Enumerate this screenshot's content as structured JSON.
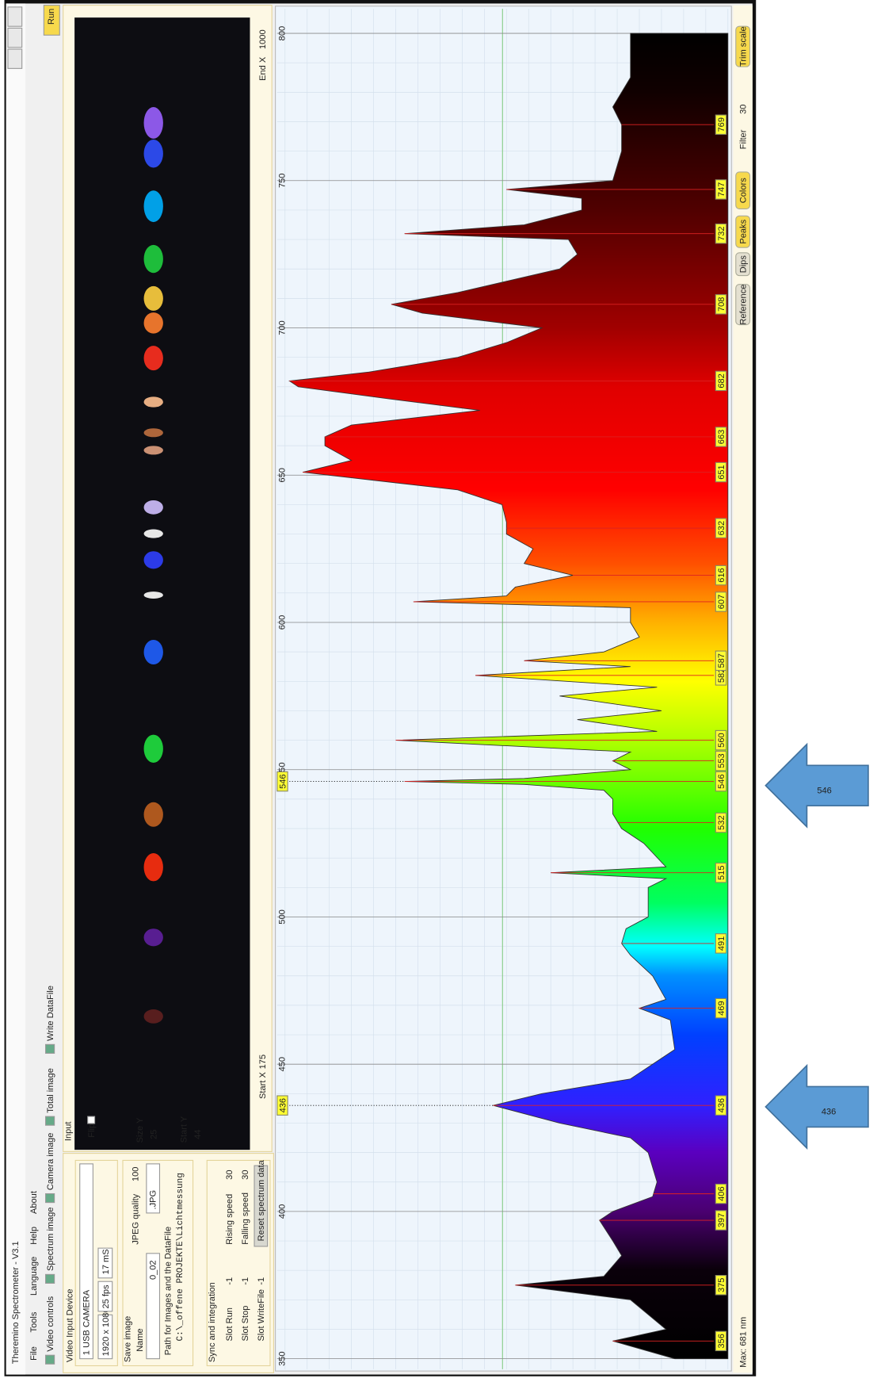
{
  "window": {
    "title": "Theremino Spectrometer - V3.1",
    "menu": [
      "File",
      "Tools",
      "Language",
      "Help",
      "About"
    ],
    "toolbar": [
      "Video controls",
      "Spectrum image",
      "Camera image",
      "Total image",
      "Write DataFile"
    ],
    "run": "Run"
  },
  "video_input": {
    "title": "Video Input Device",
    "device": "1 USB CAMERA",
    "resolution": "1920 x 1080",
    "fps": "25 fps",
    "exposure": "17 mS"
  },
  "save_image": {
    "title": "Save image",
    "name_label": "Name",
    "name": "0_02",
    "jpeg_label": "JPEG quality",
    "jpeg_quality": "100",
    "format": ".JPG",
    "path_label": "Path for Images and the DataFile",
    "path": "C:\\_offene PROJEKTE\\Lichtmessung"
  },
  "sync": {
    "title": "Sync and integration",
    "slots": [
      {
        "label": "Slot Run",
        "value": "-1"
      },
      {
        "label": "Slot Stop",
        "value": "-1"
      },
      {
        "label": "Slot WriteFile",
        "value": "-1"
      }
    ],
    "speeds": [
      {
        "label": "Rising speed",
        "value": "30"
      },
      {
        "label": "Falling speed",
        "value": "30"
      }
    ],
    "reset": "Reset spectrum data"
  },
  "input": {
    "title": "Input",
    "flip": "Flip",
    "size_y_label": "Size Y",
    "size_y": "25",
    "start_y_label": "Start Y",
    "start_y": "44",
    "start_x_label": "Start X",
    "start_x": "175",
    "end_x_label": "End X",
    "end_x": "1000"
  },
  "spectrum": {
    "type": "area",
    "x": [
      350,
      356,
      360,
      370,
      375,
      378,
      385,
      390,
      397,
      400,
      405,
      410,
      420,
      425,
      430,
      436,
      440,
      445,
      455,
      465,
      469,
      472,
      480,
      487,
      491,
      496,
      500,
      510,
      513,
      515,
      517,
      525,
      530,
      535,
      540,
      543,
      545,
      546,
      547,
      550,
      553,
      556,
      560,
      563,
      567,
      570,
      575,
      578,
      582,
      585,
      587,
      590,
      595,
      600,
      605,
      607,
      609,
      612,
      616,
      620,
      625,
      630,
      634,
      640,
      645,
      651,
      655,
      660,
      663,
      667,
      672,
      676,
      680,
      682,
      685,
      690,
      695,
      700,
      705,
      708,
      712,
      720,
      725,
      730,
      732,
      735,
      740,
      744,
      747,
      750,
      760,
      769,
      775,
      785,
      790,
      800
    ],
    "values": [
      12,
      26,
      14,
      22,
      48,
      28,
      24,
      26,
      29,
      26,
      17,
      16,
      18,
      22,
      38,
      53,
      42,
      22,
      12,
      13,
      20,
      14,
      17,
      22,
      24,
      23,
      18,
      18,
      14,
      40,
      14,
      19,
      24,
      26,
      26,
      28,
      46,
      73,
      46,
      22,
      26,
      22,
      75,
      16,
      34,
      15,
      38,
      16,
      57,
      22,
      46,
      28,
      20,
      22,
      22,
      71,
      50,
      48,
      35,
      46,
      44,
      50,
      50,
      51,
      61,
      96,
      85,
      91,
      91,
      85,
      56,
      77,
      97,
      99,
      81,
      61,
      50,
      42,
      69,
      76,
      61,
      38,
      34,
      36,
      73,
      46,
      33,
      33,
      50,
      26,
      24,
      24,
      26,
      22,
      22,
      22
    ],
    "xlim": [
      350,
      800
    ],
    "xticks": [
      350,
      400,
      450,
      500,
      550,
      600,
      650,
      700,
      750,
      800
    ],
    "ylim": [
      0,
      100
    ],
    "grid": true,
    "peaks": [
      356,
      375,
      397,
      406,
      436,
      469,
      491,
      515,
      532,
      546,
      553,
      560,
      582,
      587,
      607,
      616,
      632,
      651,
      663,
      682,
      708,
      732,
      747,
      769
    ],
    "markers": [
      436,
      546
    ]
  },
  "status": {
    "max": "Max: 681 nm",
    "buttons": [
      "Reference",
      "Dips",
      "Peaks",
      "Colors"
    ],
    "filter_label": "Filter",
    "filter": "30",
    "trim": "Trim scale"
  },
  "callouts": [
    "546",
    "436"
  ]
}
